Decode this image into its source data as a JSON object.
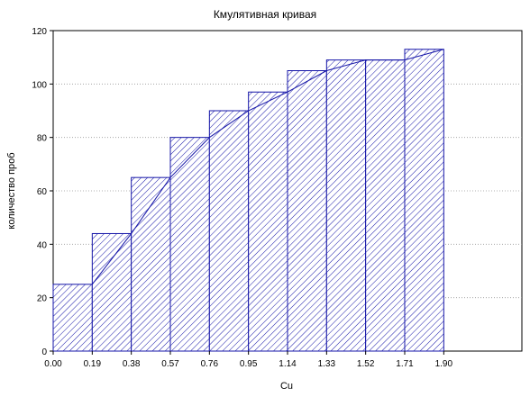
{
  "chart_data": {
    "type": "bar",
    "title": "Кмулятивная кривая",
    "xlabel": "Cu",
    "ylabel": "количество проб",
    "x_ticks": [
      "0.00",
      "0.19",
      "0.38",
      "0.57",
      "0.76",
      "0.95",
      "1.14",
      "1.33",
      "1.52",
      "1.71",
      "1.90"
    ],
    "bin_edges": [
      0.0,
      0.19,
      0.38,
      0.57,
      0.76,
      0.95,
      1.14,
      1.33,
      1.52,
      1.71,
      1.9
    ],
    "values": [
      25,
      44,
      65,
      80,
      90,
      97,
      105,
      109,
      109,
      113
    ],
    "line": [
      25,
      44,
      65,
      80,
      90,
      97,
      105,
      109,
      109,
      113
    ],
    "xlim": [
      0.0,
      2.28
    ],
    "ylim": [
      0,
      120
    ],
    "y_ticks": [
      0,
      20,
      40,
      60,
      80,
      100,
      120
    ],
    "grid": "horizontal dotted",
    "bar_fill": "hatched",
    "colors": {
      "bars": "#1515a8",
      "line": "#1515a8",
      "grid": "#999999",
      "axis": "#000000"
    }
  }
}
